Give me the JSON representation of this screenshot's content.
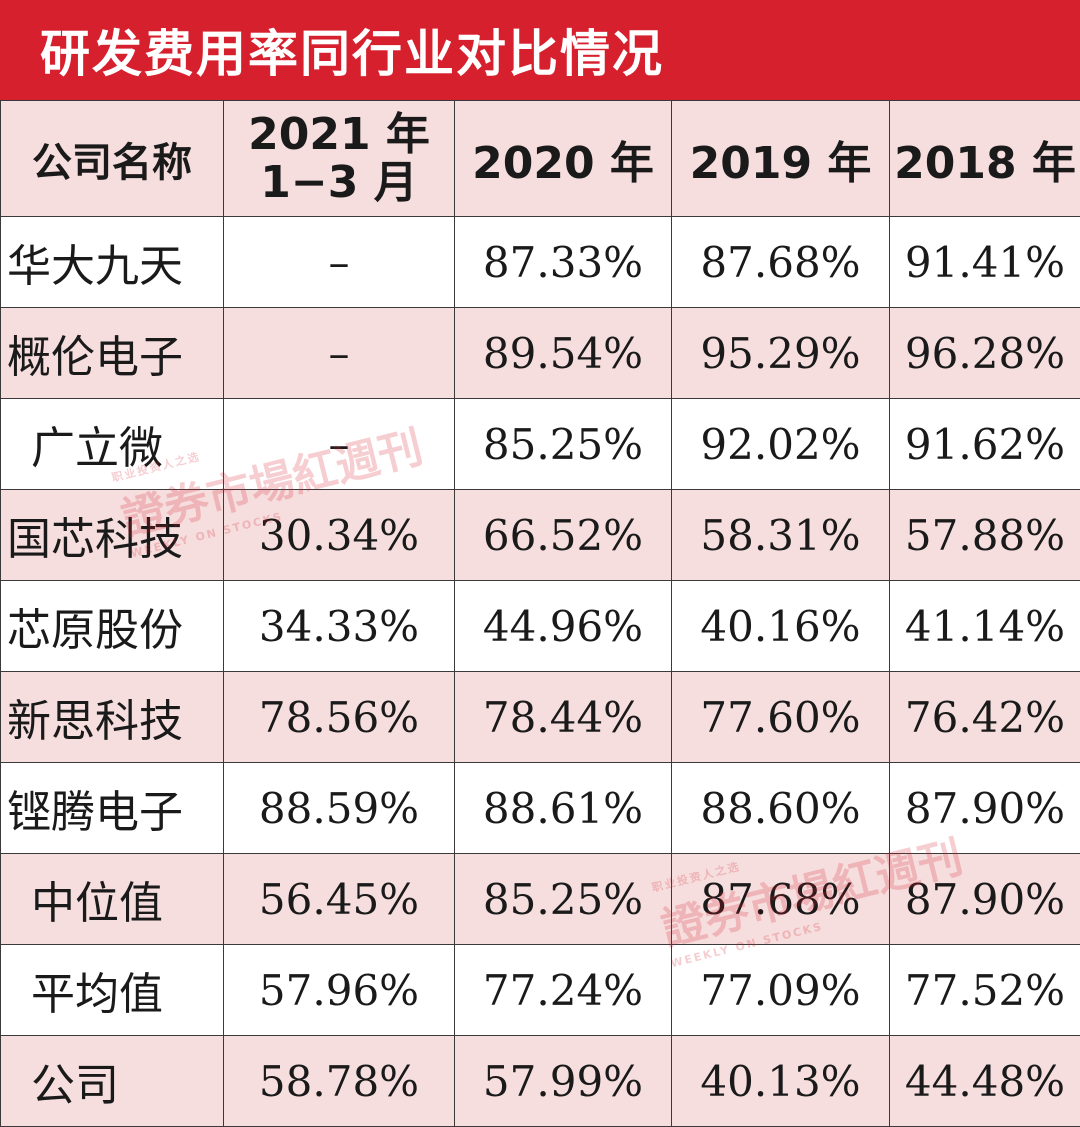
{
  "title": "研发费用率同行业对比情况",
  "table": {
    "headers": {
      "company": "公司名称",
      "col1_line1": "2021 年",
      "col1_line2": "1−3 月",
      "col2": "2020 年",
      "col3": "2019 年",
      "col4": "2018 年"
    },
    "rows": [
      {
        "name": "华大九天",
        "q1_2021": "–",
        "y2020": "87.33%",
        "y2019": "87.68%",
        "y2018": "91.41%"
      },
      {
        "name": "概伦电子",
        "q1_2021": "–",
        "y2020": "89.54%",
        "y2019": "95.29%",
        "y2018": "96.28%"
      },
      {
        "name": "广立微",
        "q1_2021": "–",
        "y2020": "85.25%",
        "y2019": "92.02%",
        "y2018": "91.62%"
      },
      {
        "name": "国芯科技",
        "q1_2021": "30.34%",
        "y2020": "66.52%",
        "y2019": "58.31%",
        "y2018": "57.88%"
      },
      {
        "name": "芯原股份",
        "q1_2021": "34.33%",
        "y2020": "44.96%",
        "y2019": "40.16%",
        "y2018": "41.14%"
      },
      {
        "name": "新思科技",
        "q1_2021": "78.56%",
        "y2020": "78.44%",
        "y2019": "77.60%",
        "y2018": "76.42%"
      },
      {
        "name": "铿腾电子",
        "q1_2021": "88.59%",
        "y2020": "88.61%",
        "y2019": "88.60%",
        "y2018": "87.90%"
      },
      {
        "name": "中位值",
        "q1_2021": "56.45%",
        "y2020": "85.25%",
        "y2019": "87.68%",
        "y2018": "87.90%"
      },
      {
        "name": "平均值",
        "q1_2021": "57.96%",
        "y2020": "77.24%",
        "y2019": "77.09%",
        "y2018": "77.52%"
      },
      {
        "name": "公司",
        "q1_2021": "58.78%",
        "y2020": "57.99%",
        "y2019": "40.13%",
        "y2018": "44.48%"
      }
    ]
  },
  "watermark": {
    "main": "證券市場紅週刊",
    "tagline": "职业投资人之选",
    "english": "WEEKLY ON STOCKS"
  },
  "colors": {
    "title_bg": "#d7202e",
    "header_bg": "#f6dede",
    "row_alt_bg": "#f6dede"
  }
}
